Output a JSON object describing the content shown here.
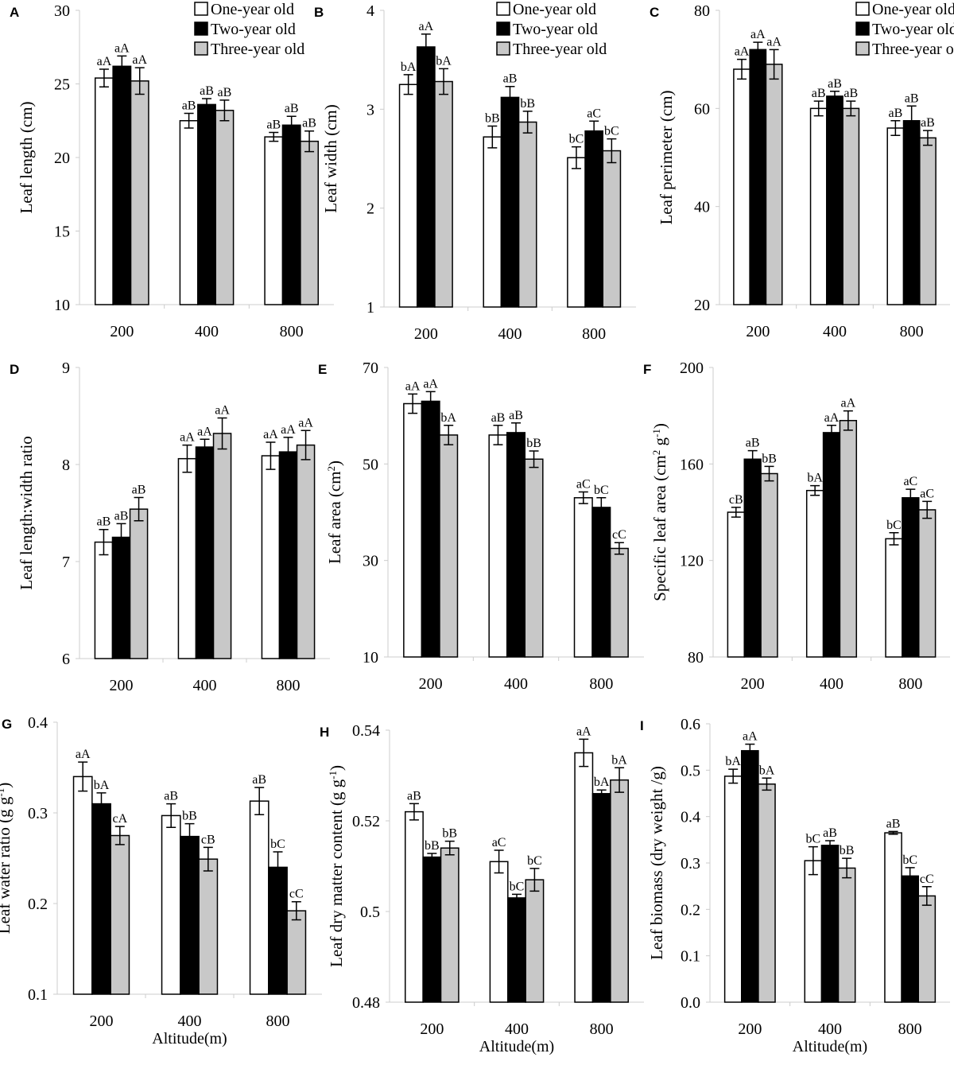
{
  "chart_data": [
    {
      "panel": "A",
      "type": "bar",
      "categories": [
        "200",
        "400",
        "800"
      ],
      "ylim": [
        10,
        30
      ],
      "yticks": [
        10,
        15,
        20,
        25,
        30
      ],
      "ylabel": [
        {
          "t": "Leaf length (cm)"
        }
      ],
      "xlabel": "",
      "legend": true,
      "series": [
        {
          "name": "One-year old",
          "values": [
            25.4,
            22.5,
            21.4
          ],
          "errors": [
            0.6,
            0.5,
            0.3
          ],
          "labels": [
            "aA",
            "aB",
            "aB"
          ]
        },
        {
          "name": "Two-year old",
          "values": [
            26.2,
            23.6,
            22.2
          ],
          "errors": [
            0.7,
            0.4,
            0.6
          ],
          "labels": [
            "aA",
            "aB",
            "aB"
          ]
        },
        {
          "name": "Three-year old",
          "values": [
            25.2,
            23.2,
            21.1
          ],
          "errors": [
            0.9,
            0.7,
            0.7
          ],
          "labels": [
            "aA",
            "aB",
            "aB"
          ]
        }
      ]
    },
    {
      "panel": "B",
      "type": "bar",
      "categories": [
        "200",
        "400",
        "800"
      ],
      "ylim": [
        1,
        4
      ],
      "yticks": [
        1,
        2,
        3,
        4
      ],
      "ylabel": [
        {
          "t": "Leaf width (cm)"
        }
      ],
      "xlabel": "",
      "legend": true,
      "series": [
        {
          "name": "One-year old",
          "values": [
            3.25,
            2.72,
            2.51
          ],
          "errors": [
            0.1,
            0.11,
            0.11
          ],
          "labels": [
            "bA",
            "bB",
            "bC"
          ]
        },
        {
          "name": "Two-year old",
          "values": [
            3.63,
            3.12,
            2.78
          ],
          "errors": [
            0.13,
            0.11,
            0.1
          ],
          "labels": [
            "aA",
            "aB",
            "aC"
          ]
        },
        {
          "name": "Three-year old",
          "values": [
            3.28,
            2.87,
            2.58
          ],
          "errors": [
            0.13,
            0.11,
            0.12
          ],
          "labels": [
            "bA",
            "bB",
            "bC"
          ]
        }
      ]
    },
    {
      "panel": "C",
      "type": "bar",
      "categories": [
        "200",
        "400",
        "800"
      ],
      "ylim": [
        20,
        80
      ],
      "yticks": [
        20,
        40,
        60,
        80
      ],
      "ylabel": [
        {
          "t": "Leaf perimeter (cm)"
        }
      ],
      "xlabel": "",
      "legend": true,
      "series": [
        {
          "name": "One-year old",
          "values": [
            68,
            60,
            56
          ],
          "errors": [
            2,
            1.5,
            1.5
          ],
          "labels": [
            "aA",
            "aB",
            "aB"
          ]
        },
        {
          "name": "Two-year old",
          "values": [
            72,
            62.5,
            57.5
          ],
          "errors": [
            1.5,
            1,
            3
          ],
          "labels": [
            "aA",
            "aB",
            "aB"
          ]
        },
        {
          "name": "Three-year old",
          "values": [
            69,
            60,
            54
          ],
          "errors": [
            3,
            1.5,
            1.5
          ],
          "labels": [
            "aA",
            "aB",
            "aB"
          ]
        }
      ]
    },
    {
      "panel": "D",
      "type": "bar",
      "categories": [
        "200",
        "400",
        "800"
      ],
      "ylim": [
        6,
        9
      ],
      "yticks": [
        6,
        7,
        8,
        9
      ],
      "ylabel": [
        {
          "t": "Leaf length:width ratio"
        }
      ],
      "xlabel": "",
      "legend": false,
      "series": [
        {
          "name": "One-year old",
          "values": [
            7.2,
            8.06,
            8.09
          ],
          "errors": [
            0.13,
            0.14,
            0.14
          ],
          "labels": [
            "aB",
            "aA",
            "aA"
          ]
        },
        {
          "name": "Two-year old",
          "values": [
            7.25,
            8.18,
            8.13
          ],
          "errors": [
            0.14,
            0.08,
            0.15
          ],
          "labels": [
            "aB",
            "aA",
            "aA"
          ]
        },
        {
          "name": "Three-year old",
          "values": [
            7.54,
            8.32,
            8.2
          ],
          "errors": [
            0.12,
            0.16,
            0.15
          ],
          "labels": [
            "aB",
            "aA",
            "aA"
          ]
        }
      ]
    },
    {
      "panel": "E",
      "type": "bar",
      "categories": [
        "200",
        "400",
        "800"
      ],
      "ylim": [
        10,
        70
      ],
      "yticks": [
        10,
        30,
        50,
        70
      ],
      "ylabel": [
        {
          "t": "Leaf area (cm"
        },
        {
          "t": "2",
          "sup": true
        },
        {
          "t": ")"
        }
      ],
      "xlabel": "",
      "legend": false,
      "series": [
        {
          "name": "One-year old",
          "values": [
            62.5,
            56,
            43
          ],
          "errors": [
            2,
            2,
            1.2
          ],
          "labels": [
            "aA",
            "aB",
            "aC"
          ]
        },
        {
          "name": "Two-year old",
          "values": [
            63,
            56.5,
            41
          ],
          "errors": [
            2,
            2,
            2
          ],
          "labels": [
            "aA",
            "aB",
            "bC"
          ]
        },
        {
          "name": "Three-year old",
          "values": [
            56,
            51,
            32.5
          ],
          "errors": [
            2,
            1.7,
            1.2
          ],
          "labels": [
            "bA",
            "bB",
            "cC"
          ]
        }
      ]
    },
    {
      "panel": "F",
      "type": "bar",
      "categories": [
        "200",
        "400",
        "800"
      ],
      "ylim": [
        80,
        200
      ],
      "yticks": [
        80,
        120,
        160,
        200
      ],
      "ylabel": [
        {
          "t": "Specific leaf area (cm"
        },
        {
          "t": "2",
          "sup": true
        },
        {
          "t": " g"
        },
        {
          "t": "-1",
          "sup": true
        },
        {
          "t": ")"
        }
      ],
      "xlabel": "",
      "legend": false,
      "series": [
        {
          "name": "One-year old",
          "values": [
            140,
            149,
            129
          ],
          "errors": [
            2,
            2,
            2.5
          ],
          "labels": [
            "cB",
            "bA",
            "bC"
          ]
        },
        {
          "name": "Two-year old",
          "values": [
            162,
            173,
            146
          ],
          "errors": [
            3.5,
            3,
            3.5
          ],
          "labels": [
            "aB",
            "aA",
            "aC"
          ]
        },
        {
          "name": "Three-year old",
          "values": [
            156,
            178,
            141
          ],
          "errors": [
            3,
            4,
            3.5
          ],
          "labels": [
            "bB",
            "aA",
            "aC"
          ]
        }
      ]
    },
    {
      "panel": "G",
      "type": "bar",
      "categories": [
        "200",
        "400",
        "800"
      ],
      "ylim": [
        0.1,
        0.4
      ],
      "yticks": [
        0.1,
        0.2,
        0.3,
        0.4
      ],
      "ylabel": [
        {
          "t": "Leaf water ratio (g g"
        },
        {
          "t": "-1",
          "sup": true
        },
        {
          "t": ")"
        }
      ],
      "xlabel": "Altitude(m)",
      "legend": false,
      "series": [
        {
          "name": "One-year old",
          "values": [
            0.34,
            0.297,
            0.313
          ],
          "errors": [
            0.016,
            0.013,
            0.015
          ],
          "labels": [
            "aA",
            "aB",
            "aB"
          ]
        },
        {
          "name": "Two-year old",
          "values": [
            0.31,
            0.274,
            0.24
          ],
          "errors": [
            0.012,
            0.014,
            0.017
          ],
          "labels": [
            "bA",
            "bB",
            "bC"
          ]
        },
        {
          "name": "Three-year old",
          "values": [
            0.275,
            0.249,
            0.192
          ],
          "errors": [
            0.01,
            0.013,
            0.01
          ],
          "labels": [
            "cA",
            "cB",
            "cC"
          ]
        }
      ]
    },
    {
      "panel": "H",
      "type": "bar",
      "categories": [
        "200",
        "400",
        "800"
      ],
      "ylim": [
        0.48,
        0.54
      ],
      "yticks": [
        0.48,
        0.5,
        0.52,
        0.54
      ],
      "ylabel": [
        {
          "t": "Leaf dry matter content (g g"
        },
        {
          "t": "-1",
          "sup": true
        },
        {
          "t": ")"
        }
      ],
      "xlabel": "Altitude(m)",
      "legend": false,
      "series": [
        {
          "name": "One-year old",
          "values": [
            0.522,
            0.511,
            0.535
          ],
          "errors": [
            0.0018,
            0.0025,
            0.003
          ],
          "labels": [
            "aB",
            "aC",
            "aA"
          ]
        },
        {
          "name": "Two-year old",
          "values": [
            0.512,
            0.503,
            0.526
          ],
          "errors": [
            0.0008,
            0.0008,
            0.0008
          ],
          "labels": [
            "bB",
            "bC",
            "bA"
          ]
        },
        {
          "name": "Three-year old",
          "values": [
            0.514,
            0.507,
            0.529
          ],
          "errors": [
            0.0015,
            0.0025,
            0.0027
          ],
          "labels": [
            "bB",
            "bC",
            "bA"
          ]
        }
      ]
    },
    {
      "panel": "I",
      "type": "bar",
      "categories": [
        "200",
        "400",
        "800"
      ],
      "ylim": [
        0,
        0.6
      ],
      "yticks": [
        0,
        0.1,
        0.2,
        0.3,
        0.4,
        0.5,
        0.6
      ],
      "ylabel": [
        {
          "t": "Leaf biomass (dry weight /g)"
        }
      ],
      "xlabel": "Altitude(m)",
      "legend": false,
      "series": [
        {
          "name": "One-year old",
          "values": [
            0.487,
            0.305,
            0.365
          ],
          "errors": [
            0.015,
            0.03,
            0.003
          ],
          "labels": [
            "bA",
            "bC",
            "aB"
          ]
        },
        {
          "name": "Two-year old",
          "values": [
            0.542,
            0.338,
            0.272
          ],
          "errors": [
            0.014,
            0.01,
            0.018
          ],
          "labels": [
            "aA",
            "aB",
            "bC"
          ]
        },
        {
          "name": "Three-year old",
          "values": [
            0.47,
            0.289,
            0.229
          ],
          "errors": [
            0.013,
            0.021,
            0.02
          ],
          "labels": [
            "bA",
            "bB",
            "cC"
          ]
        }
      ]
    }
  ],
  "colors": {
    "One-year old": "#ffffff",
    "Two-year old": "#000000",
    "Three-year old": "#c8c8c8"
  }
}
